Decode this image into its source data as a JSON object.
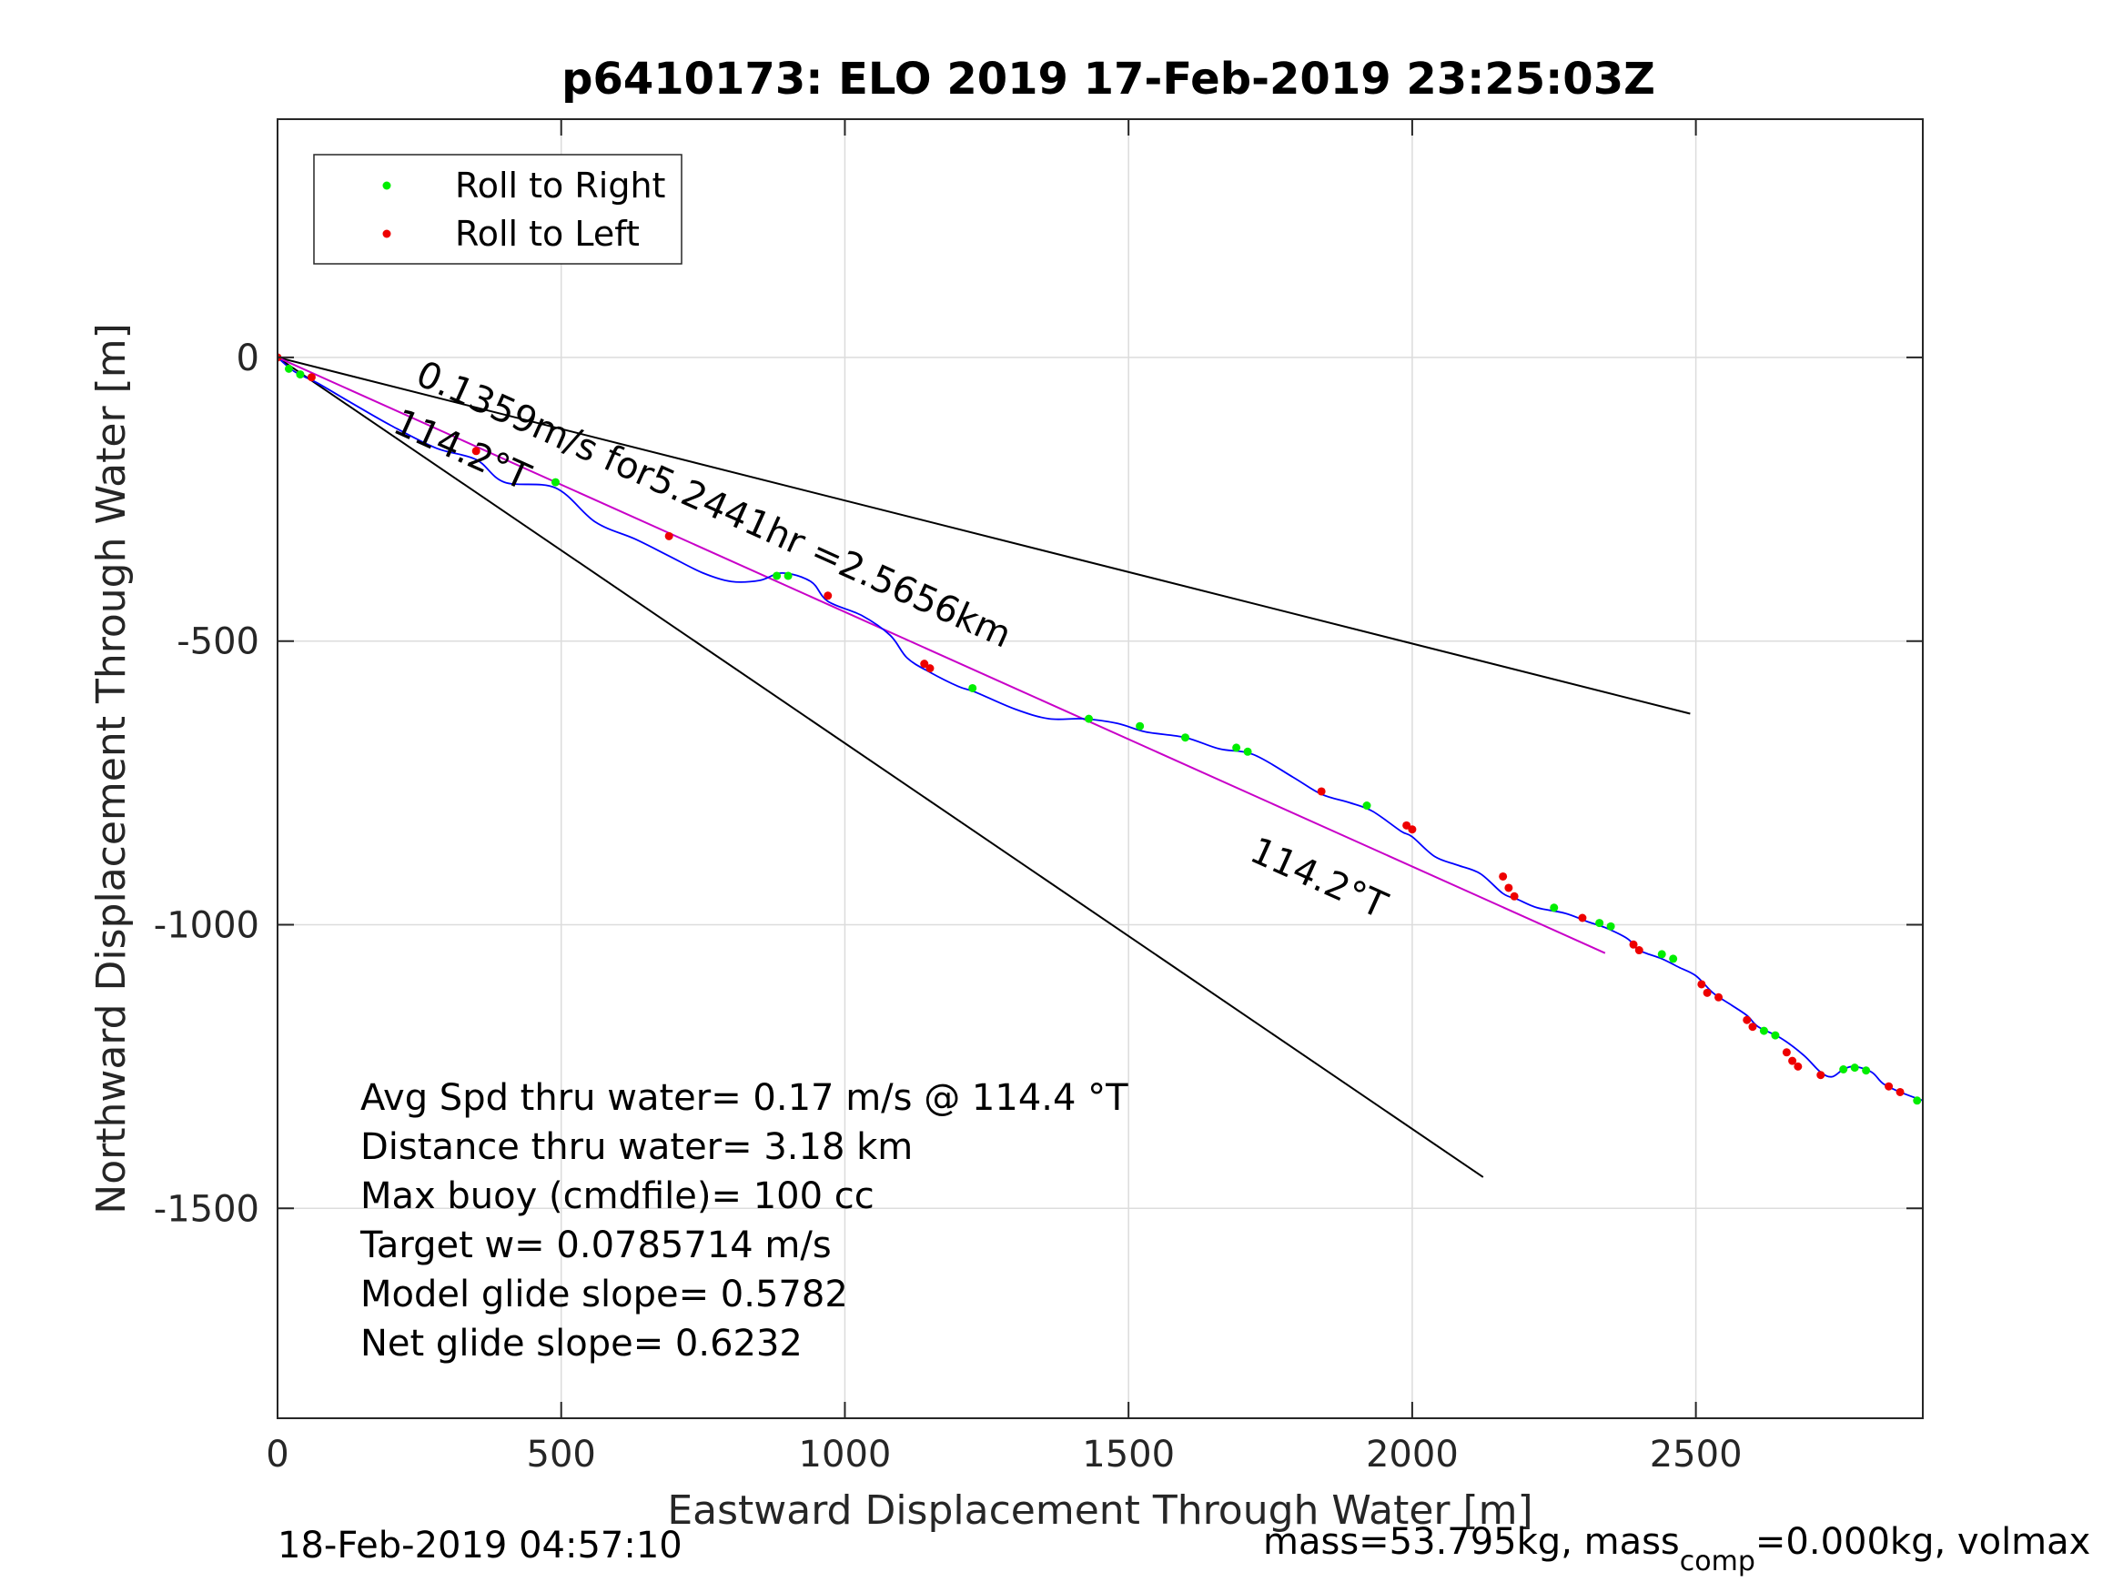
{
  "chart_data": {
    "type": "line",
    "title": "p6410173: ELO 2019 17-Feb-2019 23:25:03Z",
    "xlabel": "Eastward Displacement Through Water [m]",
    "ylabel": "Northward Displacement Through Water [m]",
    "xlim": [
      0,
      2900
    ],
    "ylim": [
      -1870,
      420
    ],
    "xticks": [
      0,
      500,
      1000,
      1500,
      2000,
      2500
    ],
    "xtick_labels": [
      "0",
      "500",
      "1000",
      "1500",
      "2000",
      "2500"
    ],
    "yticks": [
      0,
      -500,
      -1000,
      -1500
    ],
    "ytick_labels": [
      "0",
      "-500",
      "-1000",
      "-1500"
    ],
    "grid": true,
    "legend": {
      "position": "top-left",
      "entries": [
        {
          "label": "Roll to Right",
          "color": "#00ee00"
        },
        {
          "label": "Roll to Left",
          "color": "#ee0000"
        }
      ]
    },
    "track": {
      "name": "glider track",
      "color": "#0000ff",
      "x": [
        0,
        30,
        70,
        130,
        200,
        280,
        350,
        400,
        490,
        560,
        630,
        690,
        750,
        800,
        850,
        890,
        940,
        970,
        1030,
        1080,
        1110,
        1150,
        1200,
        1230,
        1300,
        1360,
        1420,
        1480,
        1530,
        1600,
        1660,
        1720,
        1790,
        1840,
        1890,
        1930,
        1980,
        2000,
        2040,
        2080,
        2120,
        2160,
        2185,
        2220,
        2270,
        2310,
        2340,
        2380,
        2400,
        2440,
        2470,
        2500,
        2530,
        2560,
        2590,
        2610,
        2650,
        2690,
        2720,
        2740,
        2760,
        2780,
        2810,
        2830,
        2860,
        2900
      ],
      "y": [
        0,
        -25,
        -45,
        -80,
        -120,
        -160,
        -180,
        -220,
        -230,
        -290,
        -320,
        -350,
        -380,
        -395,
        -393,
        -380,
        -395,
        -430,
        -455,
        -490,
        -530,
        -555,
        -580,
        -590,
        -620,
        -637,
        -637,
        -645,
        -660,
        -670,
        -690,
        -700,
        -740,
        -770,
        -785,
        -800,
        -835,
        -845,
        -880,
        -895,
        -910,
        -945,
        -955,
        -970,
        -980,
        -995,
        -1005,
        -1025,
        -1045,
        -1060,
        -1075,
        -1090,
        -1120,
        -1140,
        -1160,
        -1180,
        -1200,
        -1230,
        -1260,
        -1268,
        -1255,
        -1250,
        -1260,
        -1280,
        -1295,
        -1310
      ]
    },
    "roll_right_x": [
      20,
      40,
      490,
      880,
      900,
      1225,
      1430,
      1520,
      1600,
      1690,
      1710,
      1920,
      2250,
      2330,
      2350,
      2440,
      2460,
      2620,
      2640,
      2760,
      2780,
      2800,
      2890
    ],
    "roll_right_y": [
      -20,
      -30,
      -220,
      -385,
      -385,
      -583,
      -637,
      -650,
      -670,
      -688,
      -695,
      -790,
      -970,
      -997,
      -1003,
      -1052,
      -1060,
      -1187,
      -1195,
      -1255,
      -1252,
      -1257,
      -1310
    ],
    "roll_left_x": [
      0,
      60,
      350,
      690,
      970,
      1140,
      1150,
      1840,
      1990,
      2000,
      2160,
      2170,
      2180,
      2300,
      2390,
      2400,
      2510,
      2520,
      2540,
      2590,
      2600,
      2660,
      2670,
      2680,
      2720,
      2840,
      2860
    ],
    "roll_left_y": [
      0,
      -35,
      -165,
      -315,
      -420,
      -540,
      -548,
      -765,
      -825,
      -832,
      -915,
      -935,
      -950,
      -988,
      -1035,
      -1045,
      -1105,
      -1120,
      -1128,
      -1168,
      -1180,
      -1225,
      -1240,
      -1250,
      -1265,
      -1285,
      -1295
    ],
    "mean_track": {
      "color": "#c800c8",
      "x": [
        0,
        2340
      ],
      "y": [
        0,
        -1050
      ]
    },
    "current_vector": {
      "color": "#000000",
      "x": [
        0,
        2490
      ],
      "y": [
        0,
        -628
      ]
    },
    "heading_line": {
      "color": "#000000",
      "x": [
        0,
        2125
      ],
      "y": [
        0,
        -1445
      ]
    },
    "annotations": [
      {
        "text": "0.1359m/s for5.2441hr =2.5656km",
        "x": 240,
        "y": -45,
        "rotation": 24.2
      },
      {
        "text": "114.2°T",
        "x": 200,
        "y": -130,
        "rotation": 24.2
      },
      {
        "text": "114.2°T",
        "x": 1710,
        "y": -885,
        "rotation": 24.2
      }
    ],
    "stats_lines": [
      "Avg Spd thru water=  0.17 m/s @ 114.4 °T",
      "Distance thru water=  3.18 km",
      "Max buoy (cmdfile)= 100 cc",
      "Target w= 0.0785714 m/s",
      "Model glide slope= 0.5782",
      "Net glide slope= 0.6232"
    ],
    "footer_left": "18-Feb-2019 04:57:10",
    "footer_right": {
      "pre": "mass=53.795kg, mass",
      "sub": "comp",
      "post": "=0.000kg, volmax"
    }
  }
}
